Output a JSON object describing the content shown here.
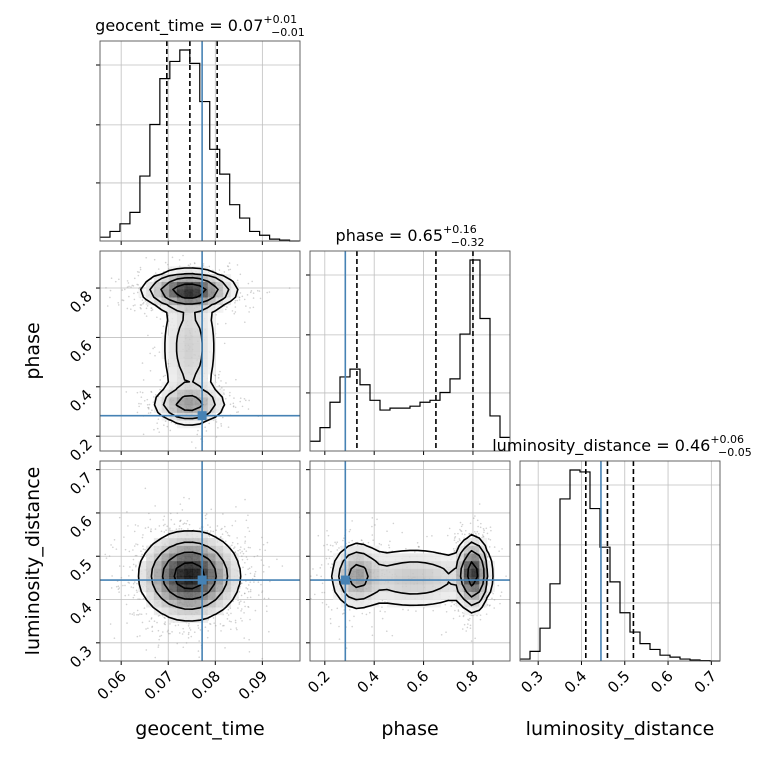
{
  "chart_data": {
    "type": "corner",
    "parameters": [
      {
        "name": "geocent_time",
        "label": "geocent_time",
        "range": [
          0.0555,
          0.098
        ],
        "ticks": [
          0.06,
          0.07,
          0.08,
          0.09
        ],
        "tick_labels": [
          "0.06",
          "0.07",
          "0.08",
          "0.09"
        ],
        "truth": 0.0772,
        "quantiles": [
          0.0697,
          0.0746,
          0.0804
        ],
        "title": {
          "prefix": "geocent_time = ",
          "median": "0.07",
          "plus": "+0.01",
          "minus": "−0.01"
        },
        "hist": {
          "edges_start": 0.0555,
          "bin_width": 0.00212,
          "counts": [
            0.02,
            0.05,
            0.09,
            0.15,
            0.34,
            0.61,
            0.85,
            0.94,
            1.0,
            0.93,
            0.73,
            0.48,
            0.35,
            0.19,
            0.12,
            0.05,
            0.03,
            0.01,
            0.005,
            0.0
          ]
        }
      },
      {
        "name": "phase",
        "label": "phase",
        "range": [
          0.14,
          0.95
        ],
        "ticks": [
          0.2,
          0.4,
          0.6,
          0.8
        ],
        "tick_labels": [
          "0.2",
          "0.4",
          "0.6",
          "0.8"
        ],
        "truth": 0.283,
        "quantiles": [
          0.33,
          0.65,
          0.8
        ],
        "title": {
          "prefix": "phase = ",
          "median": "0.65",
          "plus": "+0.16",
          "minus": "−0.32"
        },
        "hist": {
          "edges_start": 0.14,
          "bin_width": 0.0405,
          "counts": [
            0.05,
            0.12,
            0.25,
            0.38,
            0.42,
            0.34,
            0.26,
            0.21,
            0.22,
            0.22,
            0.23,
            0.25,
            0.26,
            0.3,
            0.37,
            0.6,
            0.98,
            0.68,
            0.18,
            0.07
          ]
        }
      },
      {
        "name": "luminosity_distance",
        "label": "luminosity_distance",
        "range": [
          0.258,
          0.72
        ],
        "ticks": [
          0.3,
          0.4,
          0.5,
          0.6,
          0.7
        ],
        "tick_labels": [
          "0.3",
          "0.4",
          "0.5",
          "0.6",
          "0.7"
        ],
        "truth": 0.445,
        "quantiles": [
          0.41,
          0.46,
          0.52
        ],
        "title": {
          "prefix": "luminosity_distance = ",
          "median": "0.46",
          "plus": "+0.06",
          "minus": "−0.05"
        },
        "hist": {
          "edges_start": 0.258,
          "bin_width": 0.0231,
          "counts": [
            0.01,
            0.05,
            0.17,
            0.4,
            0.84,
            0.99,
            0.98,
            0.79,
            0.59,
            0.41,
            0.25,
            0.15,
            0.09,
            0.06,
            0.03,
            0.02,
            0.01,
            0.005,
            0.002,
            0.0
          ]
        }
      }
    ],
    "pairs": [
      {
        "x": "geocent_time",
        "y": "phase",
        "modes": [
          {
            "x": 0.0745,
            "y": 0.79,
            "sx": 0.0042,
            "sy": 0.033,
            "w": 1.0
          },
          {
            "x": 0.0745,
            "y": 0.33,
            "sx": 0.0035,
            "sy": 0.035,
            "w": 0.45
          },
          {
            "x": 0.0745,
            "y": 0.56,
            "sx": 0.003,
            "sy": 0.14,
            "w": 0.22
          }
        ],
        "contour_levels": [
          0.05,
          0.14,
          0.35,
          0.7
        ]
      },
      {
        "x": "geocent_time",
        "y": "luminosity_distance",
        "modes": [
          {
            "x": 0.0745,
            "y": 0.455,
            "sx": 0.0048,
            "sy": 0.046,
            "w": 1.0
          }
        ],
        "contour_levels": [
          0.08,
          0.25,
          0.5,
          0.8
        ]
      },
      {
        "x": "phase",
        "y": "luminosity_distance",
        "modes": [
          {
            "x": 0.8,
            "y": 0.46,
            "sx": 0.028,
            "sy": 0.036,
            "w": 1.0
          },
          {
            "x": 0.33,
            "y": 0.455,
            "sx": 0.045,
            "sy": 0.035,
            "w": 0.42
          },
          {
            "x": 0.56,
            "y": 0.45,
            "sx": 0.14,
            "sy": 0.035,
            "w": 0.25
          }
        ],
        "contour_levels": [
          0.05,
          0.14,
          0.35,
          0.75
        ]
      }
    ],
    "colors": {
      "truth": "#4682b4",
      "line": "#000000",
      "grid": "#bfbfbf",
      "scatter": "#999999"
    },
    "grid": true
  }
}
